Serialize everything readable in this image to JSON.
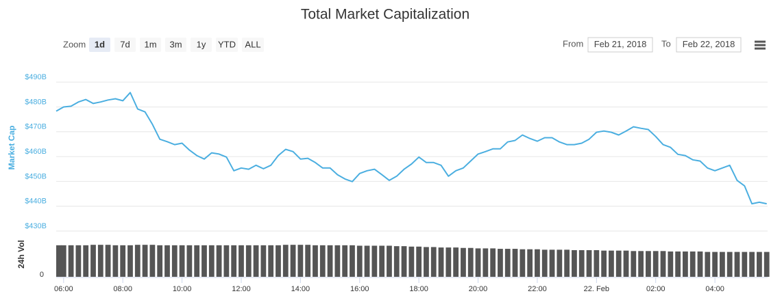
{
  "chart_data": {
    "type": "line",
    "title": "Total Market Capitalization",
    "range_selector": {
      "label": "Zoom",
      "buttons": [
        "1d",
        "7d",
        "1m",
        "3m",
        "1y",
        "YTD",
        "ALL"
      ],
      "selected": 0
    },
    "date_range": {
      "from_label": "From",
      "from": "Feb 21, 2018",
      "to_label": "To",
      "to": "Feb 22, 2018"
    },
    "y_label": "Market Cap",
    "y2_label": "24h Vol",
    "x": [
      5.75,
      6,
      6.25,
      6.5,
      6.75,
      7,
      7.25,
      7.5,
      7.75,
      8,
      8.25,
      8.5,
      8.75,
      9,
      9.25,
      9.5,
      9.75,
      10,
      10.25,
      10.5,
      10.75,
      11,
      11.25,
      11.5,
      11.75,
      12,
      12.25,
      12.5,
      12.75,
      13,
      13.25,
      13.5,
      13.75,
      14,
      14.25,
      14.5,
      14.75,
      15,
      15.25,
      15.5,
      15.75,
      16,
      16.25,
      16.5,
      16.75,
      17,
      17.25,
      17.5,
      17.75,
      18,
      18.25,
      18.5,
      18.75,
      19,
      19.25,
      19.5,
      19.75,
      20,
      20.25,
      20.5,
      20.75,
      21,
      21.25,
      21.5,
      21.75,
      22,
      22.25,
      22.5,
      22.75,
      23,
      23.25,
      23.5,
      23.75,
      24,
      24.25,
      24.5,
      24.75,
      25,
      25.25,
      25.5,
      25.75,
      26,
      26.25,
      26.5,
      26.75,
      27,
      27.25,
      27.5,
      27.75,
      28,
      28.25,
      28.5,
      28.75,
      29,
      29.25,
      29.5,
      29.75
    ],
    "series": [
      {
        "color": "#4aaee0",
        "values": [
          478.3,
          480,
          480.3,
          482,
          483,
          481.4,
          482,
          482.8,
          483.3,
          482.5,
          485.8,
          479.2,
          478,
          473,
          467,
          466,
          464.8,
          465.4,
          462.6,
          460.4,
          459,
          461.5,
          461,
          459.8,
          454.3,
          455.4,
          454.9,
          456.5,
          455.1,
          456.5,
          460.4,
          462.9,
          462,
          459,
          459.3,
          457.6,
          455.4,
          455.4,
          452.7,
          451,
          449.9,
          453.2,
          454.3,
          454.9,
          452.7,
          450.4,
          452.1,
          454.9,
          457,
          459.8,
          457.6,
          457.6,
          456.5,
          452.1,
          454.3,
          455.4,
          458.2,
          461,
          462,
          463.1,
          463.1,
          465.9,
          466.5,
          468.7,
          467.3,
          466.2,
          467.6,
          467.6,
          465.9,
          464.8,
          464.8,
          465.4,
          467,
          469.8,
          470.3,
          469.8,
          468.7,
          470.3,
          472,
          471.4,
          470.9,
          468.1,
          464.8,
          463.7,
          460.9,
          460.4,
          458.7,
          458.2,
          455.4,
          454.3,
          455.4,
          456.5,
          450.4,
          448.2,
          441,
          441.6,
          441
        ]
      },
      {
        "color": "#555555",
        "axis": "y2",
        "values": [
          71,
          71,
          71,
          71,
          71,
          72,
          72,
          72,
          71,
          71,
          71,
          72,
          72,
          72,
          71,
          71,
          71,
          71,
          71,
          71,
          71,
          71,
          71,
          71,
          71,
          71,
          71,
          71,
          71,
          71,
          71,
          72,
          72,
          72,
          72,
          71,
          71,
          71,
          71,
          71,
          71,
          70,
          70,
          70,
          70,
          70,
          69,
          69,
          68,
          68,
          67,
          67,
          66,
          66,
          66,
          65,
          65,
          64,
          64,
          64,
          63,
          63,
          63,
          62,
          62,
          62,
          61,
          61,
          61,
          61,
          60,
          60,
          60,
          60,
          59,
          59,
          59,
          59,
          58,
          58,
          58,
          58,
          58,
          57,
          57,
          57,
          57,
          57,
          56,
          56,
          56,
          56,
          56,
          56,
          56,
          56,
          56
        ]
      }
    ],
    "xlim": [
      5.75,
      29.78
    ],
    "xticks": [
      {
        "value": 6,
        "label": "06:00"
      },
      {
        "value": 8,
        "label": "08:00"
      },
      {
        "value": 10,
        "label": "10:00"
      },
      {
        "value": 12,
        "label": "12:00"
      },
      {
        "value": 14,
        "label": "14:00"
      },
      {
        "value": 16,
        "label": "16:00"
      },
      {
        "value": 18,
        "label": "18:00"
      },
      {
        "value": 20,
        "label": "20:00"
      },
      {
        "value": 22,
        "label": "22:00"
      },
      {
        "value": 24,
        "label": "22. Feb"
      },
      {
        "value": 26,
        "label": "02:00"
      },
      {
        "value": 28,
        "label": "04:00"
      }
    ],
    "ylim": [
      430,
      495
    ],
    "yticks": [
      {
        "value": 430,
        "label": "$430B"
      },
      {
        "value": 440,
        "label": "$440B"
      },
      {
        "value": 450,
        "label": "$450B"
      },
      {
        "value": 460,
        "label": "$460B"
      },
      {
        "value": 470,
        "label": "$470B"
      },
      {
        "value": 480,
        "label": "$480B"
      },
      {
        "value": 490,
        "label": "$490B"
      }
    ],
    "y2lim": [
      0,
      100
    ],
    "y2ticks": [
      0
    ],
    "grid": true
  }
}
